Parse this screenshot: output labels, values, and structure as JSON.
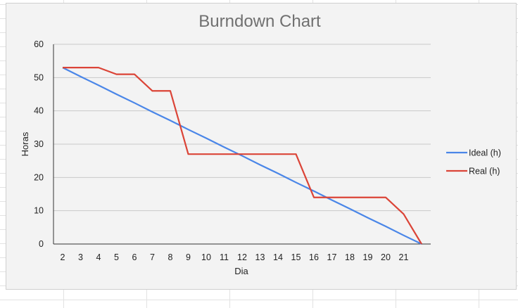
{
  "chart_data": {
    "type": "line",
    "title": "Burndown Chart",
    "xlabel": "Dia",
    "ylabel": "Horas",
    "categories": [
      "2",
      "3",
      "4",
      "5",
      "6",
      "7",
      "8",
      "9",
      "10",
      "11",
      "12",
      "13",
      "14",
      "15",
      "16",
      "17",
      "18",
      "19",
      "20",
      "21",
      ""
    ],
    "ylim": [
      0,
      60
    ],
    "yticks": [
      "0",
      "10",
      "20",
      "30",
      "40",
      "50",
      "60"
    ],
    "grid": true,
    "legend_position": "right",
    "series": [
      {
        "name": "Ideal (h)",
        "color": "#4a86e8",
        "values": [
          53,
          50.3,
          47.7,
          45,
          42.4,
          39.7,
          37.1,
          34.4,
          31.8,
          29.1,
          26.5,
          23.8,
          21.2,
          18.5,
          15.9,
          13.2,
          10.6,
          7.9,
          5.3,
          2.6,
          0
        ]
      },
      {
        "name": "Real (h)",
        "color": "#db4437",
        "values": [
          53,
          53,
          53,
          51,
          51,
          46,
          46,
          27,
          27,
          27,
          27,
          27,
          27,
          27,
          14,
          14,
          14,
          14,
          14,
          9,
          0
        ]
      }
    ]
  }
}
